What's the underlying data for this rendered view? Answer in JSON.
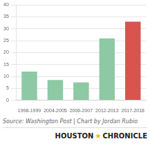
{
  "chart_data": {
    "type": "bar",
    "categories": [
      "1998-1999",
      "2004-2005",
      "2006-2007",
      "2012-2013",
      "2017-2018"
    ],
    "values": [
      12,
      8.5,
      7.5,
      26,
      33
    ],
    "colors": [
      "#8dc9a4",
      "#8dc9a4",
      "#8dc9a4",
      "#8dc9a4",
      "#d9534f"
    ],
    "ylim": [
      0,
      40
    ],
    "yticks": [
      0,
      5,
      10,
      15,
      20,
      25,
      30,
      35,
      40
    ],
    "grid": true,
    "annotations": [
      "Source: Washington Post | Chart by Jordan Rubio",
      "HOUSTON",
      "★",
      "CHRONICLE"
    ]
  }
}
